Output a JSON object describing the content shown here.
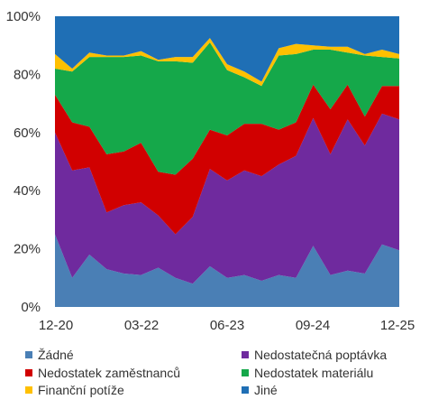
{
  "chart_data": {
    "type": "area",
    "stacked": true,
    "x_ticks": [
      "12-20",
      "03-22",
      "06-23",
      "09-24",
      "12-25"
    ],
    "y_ticks": [
      "0%",
      "20%",
      "40%",
      "60%",
      "80%",
      "100%"
    ],
    "ylim": [
      0,
      100
    ],
    "grid": false,
    "legend_position": "bottom",
    "x": [
      "12-20",
      "03-21",
      "06-21",
      "09-21",
      "12-21",
      "03-22",
      "06-22",
      "09-22",
      "12-22",
      "03-23",
      "06-23",
      "09-23",
      "12-23",
      "03-24",
      "06-24",
      "09-24",
      "12-24",
      "03-25",
      "06-25",
      "09-25",
      "12-25"
    ],
    "series": [
      {
        "name": "Žádné",
        "color": "#4a7fb5",
        "values": [
          25,
          10,
          18,
          13,
          11.5,
          11,
          13.5,
          10,
          8,
          14,
          10,
          11,
          9,
          11,
          10,
          21,
          11,
          12.5,
          11.5,
          21.5,
          19.5
        ]
      },
      {
        "name": "Nedostatečná poptávka",
        "color": "#6f2a9e",
        "values": [
          35,
          37,
          30,
          19.5,
          23.5,
          25,
          18,
          15,
          23,
          33.5,
          33.5,
          36,
          36,
          38,
          42,
          44,
          41.5,
          52,
          44,
          45,
          45
        ]
      },
      {
        "name": "Nedostatek zaměstnanců",
        "color": "#d10000",
        "values": [
          13,
          16.5,
          14,
          20,
          18.5,
          20.5,
          15,
          20.5,
          20,
          13.5,
          15.5,
          16,
          18,
          12,
          11.5,
          11.5,
          15.5,
          12,
          10,
          9.5,
          11.5
        ]
      },
      {
        "name": "Nedostatek materiálu",
        "color": "#15a84a",
        "values": [
          9,
          17.5,
          24,
          33.5,
          32.5,
          30,
          38,
          39,
          33,
          30,
          22.5,
          16,
          13,
          25.5,
          23.5,
          12,
          20.5,
          11,
          21,
          10,
          9.5
        ]
      },
      {
        "name": "Finanční potíže",
        "color": "#ffc000",
        "values": [
          5,
          1,
          1.5,
          0.5,
          0.5,
          1.5,
          0.5,
          1.5,
          2,
          1.5,
          2,
          2,
          1.5,
          2.5,
          3.5,
          1.5,
          1,
          2,
          0.5,
          2.5,
          1.5
        ]
      },
      {
        "name": "Jiné",
        "color": "#1f6fb5",
        "values": [
          13,
          18,
          12.5,
          13.5,
          13.5,
          12,
          15,
          14,
          14,
          7.5,
          16.5,
          19,
          22.5,
          11,
          9.5,
          10,
          10.5,
          10.5,
          13,
          11.5,
          13
        ]
      }
    ]
  }
}
